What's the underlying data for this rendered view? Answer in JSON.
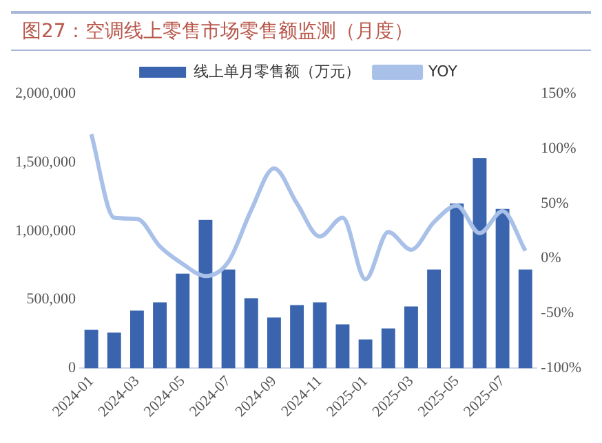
{
  "chart_data": {
    "type": "bar",
    "title": "图27：空调线上零售市场零售额监测（月度）",
    "categories": [
      "2024-01",
      null,
      "2024-03",
      null,
      "2024-05",
      null,
      "2024-07",
      null,
      "2024-09",
      null,
      "2024-11",
      null,
      "2025-01",
      null,
      "2025-03",
      null,
      "2025-05",
      null,
      "2025-07",
      null
    ],
    "series": [
      {
        "name": "线上单月零售额（万元）",
        "type": "bar",
        "color": "#3a64ad",
        "values": [
          280000,
          260000,
          420000,
          480000,
          690000,
          1080000,
          720000,
          510000,
          370000,
          460000,
          480000,
          320000,
          210000,
          290000,
          450000,
          720000,
          1200000,
          1530000,
          1160000,
          720000
        ]
      },
      {
        "name": "YOY",
        "type": "line",
        "axis": "y2",
        "color": "#a9c0e8",
        "values": [
          113,
          37,
          36,
          11,
          -5,
          -16,
          -3,
          44,
          82,
          50,
          20,
          37,
          -19,
          24,
          8,
          33,
          48,
          23,
          43,
          7
        ]
      }
    ],
    "ylim": [
      0,
      2000000
    ],
    "yticks": [
      0,
      {
        "value": 500000,
        "label": "500,000"
      },
      {
        "value": 1000000,
        "label": "1,000,000"
      },
      {
        "value": 1500000,
        "label": "1,500,000"
      },
      {
        "value": 2000000,
        "label": "2,000,000"
      }
    ],
    "y2lim": [
      -100,
      150
    ],
    "y2ticks": [
      {
        "value": -100,
        "label": "-100%"
      },
      {
        "value": -50,
        "label": "-50%"
      },
      {
        "value": 0,
        "label": "0%"
      },
      {
        "value": 50,
        "label": "50%"
      },
      {
        "value": 100,
        "label": "100%"
      },
      {
        "value": 150,
        "label": "150%"
      }
    ],
    "grid": false,
    "legend": "top",
    "marker": "none"
  }
}
